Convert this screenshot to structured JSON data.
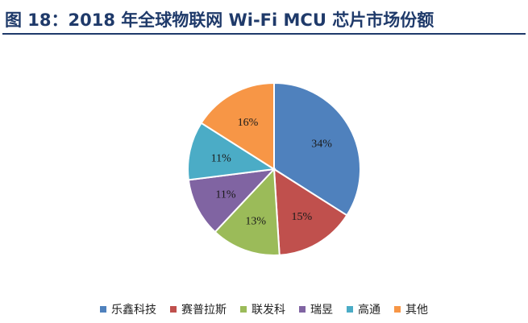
{
  "figure": {
    "title": "图 18：2018 年全球物联网 Wi-Fi MCU 芯片市场份额"
  },
  "chart_data": {
    "type": "pie",
    "title": "",
    "start_angle_deg": 0,
    "direction": "clockwise",
    "slices": [
      {
        "name": "乐鑫科技",
        "value": 34,
        "label": "34%",
        "color": "#4f81bd"
      },
      {
        "name": "赛普拉斯",
        "value": 15,
        "label": "15%",
        "color": "#c0504d"
      },
      {
        "name": "联发科",
        "value": 13,
        "label": "13%",
        "color": "#9bbb59"
      },
      {
        "name": "瑞昱",
        "value": 11,
        "label": "11%",
        "color": "#8064a2"
      },
      {
        "name": "高通",
        "value": 11,
        "label": "11%",
        "color": "#4bacc6"
      },
      {
        "name": "其他",
        "value": 16,
        "label": "16%",
        "color": "#f79646"
      }
    ],
    "legend": {
      "placement": "bottom"
    }
  }
}
